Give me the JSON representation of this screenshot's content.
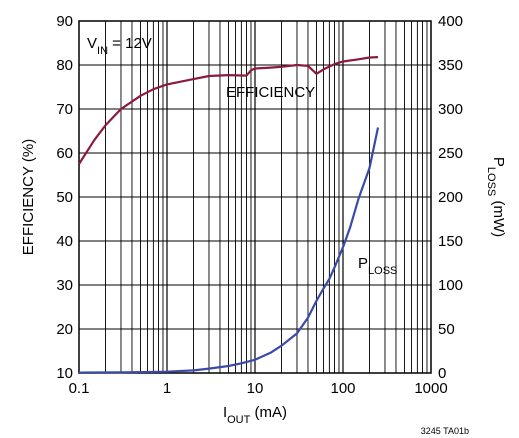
{
  "chart_data": {
    "type": "line",
    "x_scale": "log",
    "xlim": [
      0.1,
      1000
    ],
    "ylim_left": [
      10,
      90
    ],
    "ylim_right": [
      0,
      400
    ],
    "grid": true,
    "x_ticks": [
      "0.1",
      "1",
      "10",
      "100",
      "1000"
    ],
    "y_left_ticks": [
      "10",
      "20",
      "30",
      "40",
      "50",
      "60",
      "70",
      "80",
      "90"
    ],
    "y_right_ticks": [
      "0",
      "50",
      "100",
      "150",
      "200",
      "250",
      "300",
      "350",
      "400"
    ],
    "xlabel": {
      "main": "I",
      "sub": "OUT",
      "rest": " (mA)"
    },
    "ylabel_left": "EFFICIENCY (%)",
    "ylabel_right": {
      "main": "P",
      "sub": "LOSS",
      "rest": " (mW)"
    },
    "annotations": {
      "vin": {
        "main": "V",
        "sub": "IN",
        "rest": " = 12V"
      },
      "efficiency": "EFFICIENCY",
      "ploss": {
        "main": "P",
        "sub": "LOSS"
      }
    },
    "figure_code": "3245 TA01b",
    "series": [
      {
        "name": "EFFICIENCY",
        "axis": "left",
        "color": "#8b1a3c",
        "x": [
          0.1,
          0.15,
          0.2,
          0.3,
          0.5,
          0.7,
          1,
          2,
          3,
          5,
          8,
          9,
          10,
          15,
          20,
          30,
          40,
          50,
          60,
          80,
          100,
          150,
          200,
          250
        ],
        "y": [
          57.5,
          63,
          66.3,
          70,
          73,
          74.5,
          75.6,
          76.8,
          77.5,
          77.7,
          77.6,
          78.8,
          79.2,
          79.4,
          79.6,
          80,
          79.8,
          78,
          79,
          80.2,
          80.8,
          81.3,
          81.7,
          81.8
        ]
      },
      {
        "name": "PLOSS",
        "axis": "right",
        "color": "#3a4aa6",
        "x": [
          0.1,
          0.3,
          1,
          2,
          3,
          5,
          7,
          10,
          15,
          20,
          30,
          40,
          50,
          60,
          70,
          80,
          100,
          120,
          150,
          200,
          250
        ],
        "y": [
          0.5,
          0.7,
          1.5,
          3,
          5,
          8,
          11,
          15,
          23,
          31,
          45,
          63,
          82,
          96,
          107,
          120,
          143,
          165,
          198,
          233,
          279
        ]
      }
    ]
  }
}
